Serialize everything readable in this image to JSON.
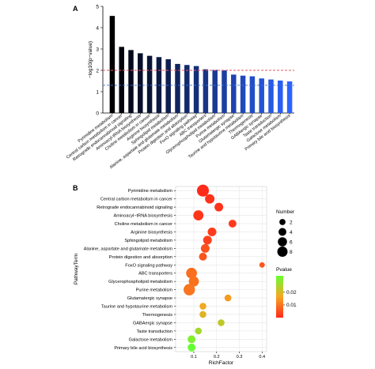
{
  "panel_a_label": "A",
  "panel_b_label": "B",
  "chart_data": [
    {
      "type": "bar",
      "title": "",
      "xlabel": "",
      "ylabel": "−log10(p−value)",
      "ylim": [
        0,
        5
      ],
      "yticks": [
        0,
        1,
        2,
        3,
        4,
        5
      ],
      "categories": [
        "Pyrimidine metabolism",
        "Central carbon metabolism in cancer",
        "Retrograde endocannabinoid signaling",
        "Aminoacyl-tRNA biosynthesis",
        "Choline metabolism in cancer",
        "Arginine biosynthesis",
        "Sphingolipid metabolism",
        "Alanine, aspartate and glutamate metabolism",
        "Protein digestion and absorption",
        "FoxO signaling pathway",
        "ABC transporters",
        "Glycerophospholipid metabolism",
        "Purine metabolism",
        "Glutamatergic synapse",
        "Taurine and hypotaurine metabolism",
        "Thermogenesis",
        "GABAergic synapse",
        "Taste transduction",
        "Galactose metabolism",
        "Primary bile acid biosynthesis"
      ],
      "values": [
        4.55,
        3.1,
        2.95,
        2.8,
        2.68,
        2.62,
        2.52,
        2.3,
        2.25,
        2.2,
        2.05,
        2.02,
        2.0,
        1.8,
        1.75,
        1.72,
        1.62,
        1.57,
        1.52,
        1.48
      ],
      "reference_lines": [
        {
          "y": 2.0,
          "color": "#e8525f",
          "style": "dashed"
        },
        {
          "y": 1.3,
          "color": "#3e6fd0",
          "style": "dashed"
        }
      ],
      "colors": {
        "start": "#000000",
        "end": "#2b63ff"
      }
    },
    {
      "type": "scatter",
      "title": "",
      "xlabel": "RichFactor",
      "ylabel": "PathwayTerm",
      "xlim": [
        0.02,
        0.42
      ],
      "xticks": [
        0.1,
        0.2,
        0.3,
        0.4
      ],
      "grid": true,
      "categories": [
        "Pyrimidine metabolism",
        "Central carbon metabolism in cancer",
        "Retrograde endocannabinoid signaling",
        "Aminoacyl−tRNA biosynthesis",
        "Choline metabolism in cancer",
        "Arginine biosynthesis",
        "Sphingolipid metabolism",
        "Alanine, aspartate and glutamate metabolism",
        "Protein digestion and absorption",
        "FoxO signaling pathway",
        "ABC transporters",
        "Glycerophospholipid metabolism",
        "Purine metabolism",
        "Glutamatergic synapse",
        "Taurine and hypotaurine metabolism",
        "Thermogenesis",
        "GABAergic synapse",
        "Taste transduction",
        "Galactose metabolism",
        "Primary bile acid biosynthesis"
      ],
      "points": [
        {
          "x": 0.14,
          "number": 9,
          "pvalue": 0.0001
        },
        {
          "x": 0.17,
          "number": 5,
          "pvalue": 0.001
        },
        {
          "x": 0.21,
          "number": 4,
          "pvalue": 0.0012
        },
        {
          "x": 0.12,
          "number": 6,
          "pvalue": 0.0015
        },
        {
          "x": 0.27,
          "number": 3,
          "pvalue": 0.002
        },
        {
          "x": 0.18,
          "number": 4,
          "pvalue": 0.0024
        },
        {
          "x": 0.16,
          "number": 4,
          "pvalue": 0.003
        },
        {
          "x": 0.15,
          "number": 4,
          "pvalue": 0.005
        },
        {
          "x": 0.14,
          "number": 3,
          "pvalue": 0.0055
        },
        {
          "x": 0.4,
          "number": 1,
          "pvalue": 0.006
        },
        {
          "x": 0.09,
          "number": 7,
          "pvalue": 0.009
        },
        {
          "x": 0.1,
          "number": 6,
          "pvalue": 0.0095
        },
        {
          "x": 0.08,
          "number": 8,
          "pvalue": 0.01
        },
        {
          "x": 0.25,
          "number": 2,
          "pvalue": 0.015
        },
        {
          "x": 0.14,
          "number": 2,
          "pvalue": 0.017
        },
        {
          "x": 0.14,
          "number": 2,
          "pvalue": 0.019
        },
        {
          "x": 0.22,
          "number": 2,
          "pvalue": 0.023
        },
        {
          "x": 0.12,
          "number": 2,
          "pvalue": 0.026
        },
        {
          "x": 0.09,
          "number": 3,
          "pvalue": 0.03
        },
        {
          "x": 0.09,
          "number": 3,
          "pvalue": 0.033
        }
      ],
      "size_legend": {
        "title": "Number",
        "values": [
          2,
          4,
          6,
          8
        ]
      },
      "color_legend": {
        "title": "Pvalue",
        "ticks": [
          0.02,
          0.01
        ],
        "range": [
          0,
          0.033
        ],
        "low_color": "#ff2a1a",
        "high_color": "#66ff33"
      }
    }
  ]
}
